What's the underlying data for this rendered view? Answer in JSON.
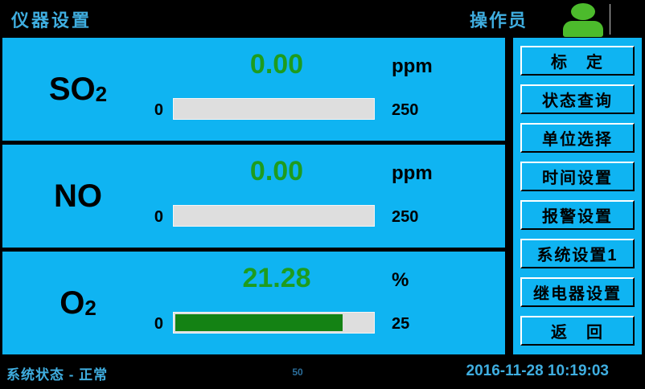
{
  "header": {
    "title": "仪器设置",
    "user_label": "操作员",
    "user_icon": "operator-person-icon"
  },
  "panels": [
    {
      "gas_base": "SO",
      "gas_sub": "2",
      "value": "0.00",
      "unit": "ppm",
      "range_min": "0",
      "range_max": "250",
      "bar_percent": 0
    },
    {
      "gas_base": "NO",
      "gas_sub": "",
      "value": "0.00",
      "unit": "ppm",
      "range_min": "0",
      "range_max": "250",
      "bar_percent": 0
    },
    {
      "gas_base": "O",
      "gas_sub": "2",
      "value": "21.28",
      "unit": "%",
      "range_min": "0",
      "range_max": "25",
      "bar_percent": 85
    }
  ],
  "sidebar": {
    "buttons": [
      {
        "label": "标　定"
      },
      {
        "label": "状态查询"
      },
      {
        "label": "单位选择"
      },
      {
        "label": "时间设置"
      },
      {
        "label": "报警设置"
      },
      {
        "label": "系统设置1"
      },
      {
        "label": "继电器设置"
      },
      {
        "label": "返　回"
      }
    ]
  },
  "footer": {
    "status": "系统状态 - 正常",
    "center_value": "50",
    "datetime": "2016-11-28 10:19:03"
  },
  "colors": {
    "panel_blue": "#0FB4F2",
    "value_green": "#1E9C1E",
    "bar_fill_green": "#148214",
    "icon_green": "#4CBB2C",
    "header_text_blue": "#3FAEE0",
    "center_value_blue": "#2B6E9B",
    "bar_track_gray": "#DEDEDE"
  }
}
